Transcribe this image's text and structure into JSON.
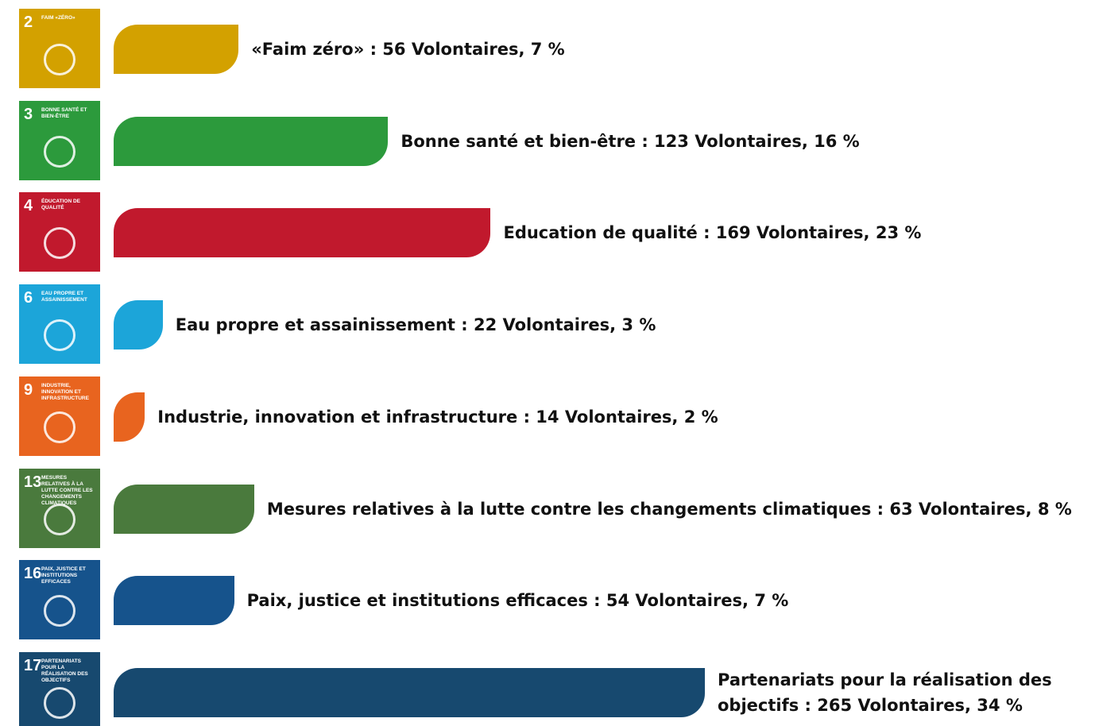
{
  "chart_data": {
    "type": "bar",
    "orientation": "horizontal",
    "categories": [
      "«Faim zéro»",
      "Bonne santé et bien-être",
      "Education de qualité",
      "Eau propre et assainissement",
      "Industrie, innovation et infrastructure",
      "Mesures relatives à la lutte contre les changements climatiques",
      "Paix, justice et institutions efficaces",
      "Partenariats pour la réalisation des objectifs"
    ],
    "values": [
      56,
      123,
      169,
      22,
      14,
      63,
      54,
      265
    ],
    "value_labels": [
      "«Faim zéro» : 56 Volontaires, 7 %",
      "Bonne santé et bien-être : 123 Volontaires, 16 %",
      "Education de qualité : 169 Volontaires, 23  %",
      "Eau propre et assainissement : 22 Volontaires, 3  %",
      "Industrie, innovation et infrastructure : 14 Volontaires, 2  %",
      "Mesures relatives à la lutte contre les changements climatiques : 63 Volontaires, 8  %",
      "Paix, justice et institutions efficaces : 54 Volontaires, 7  %",
      "Partenariats pour la réalisation des objectifs : 265 Volontaires, 34  %"
    ],
    "colors": [
      "#d3a100",
      "#2c9a3c",
      "#c1192d",
      "#1ca5d9",
      "#e8641f",
      "#4a7a3d",
      "#16538c",
      "#17496f"
    ],
    "icons": [
      {
        "number": "2",
        "caption": "FAIM «ZÉRO»"
      },
      {
        "number": "3",
        "caption": "BONNE SANTÉ ET BIEN-ÊTRE"
      },
      {
        "number": "4",
        "caption": "ÉDUCATION DE QUALITÉ"
      },
      {
        "number": "6",
        "caption": "EAU PROPRE ET ASSAINISSEMENT"
      },
      {
        "number": "9",
        "caption": "INDUSTRIE, INNOVATION ET INFRASTRUCTURE"
      },
      {
        "number": "13",
        "caption": "MESURES RELATIVES À LA LUTTE CONTRE LES CHANGEMENTS CLIMATIQUES"
      },
      {
        "number": "16",
        "caption": "PAIX, JUSTICE ET INSTITUTIONS EFFICACES"
      },
      {
        "number": "17",
        "caption": "PARTENARIATS POUR LA RÉALISATION DES OBJECTIFS"
      }
    ]
  }
}
